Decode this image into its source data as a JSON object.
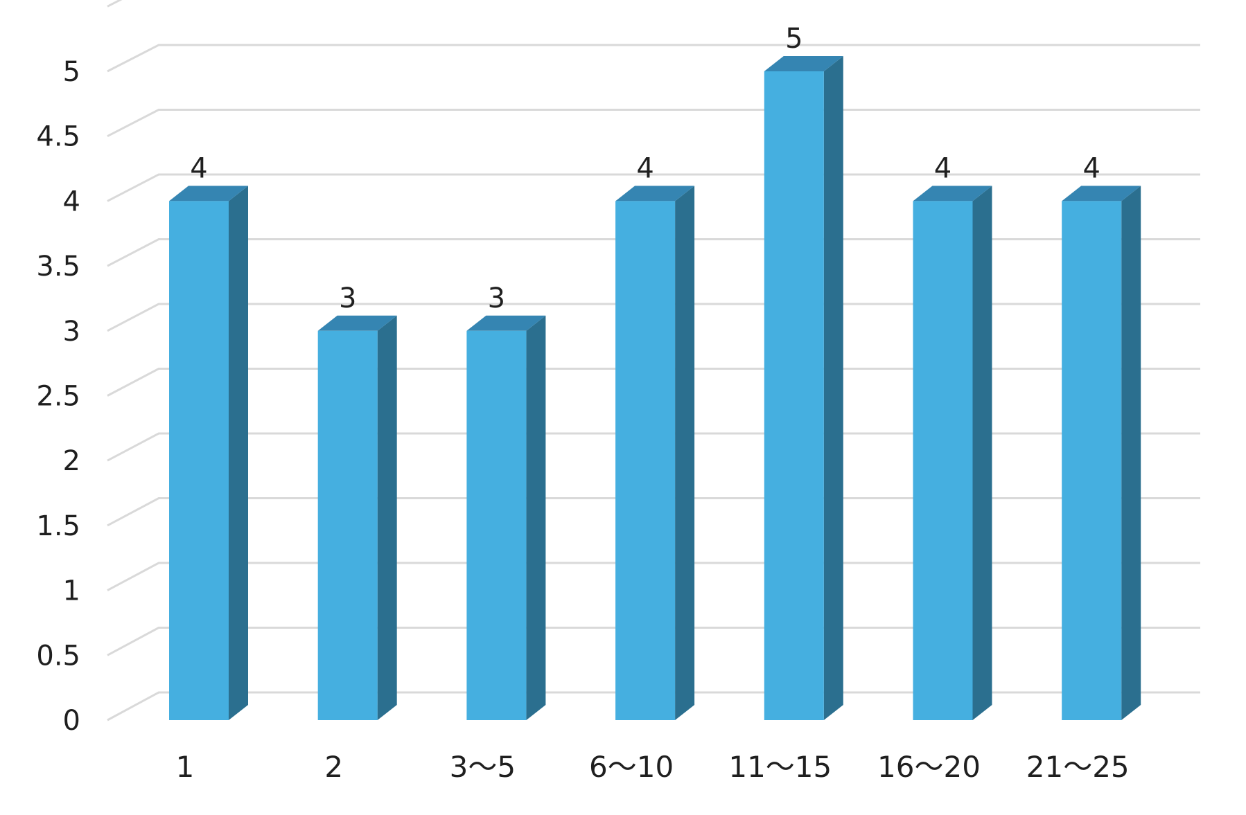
{
  "chart_data": {
    "type": "bar",
    "style": "3d-column",
    "categories": [
      "1",
      "2",
      "3〜5",
      "6〜10",
      "11〜15",
      "16〜20",
      "21〜25"
    ],
    "values": [
      4,
      3,
      3,
      4,
      5,
      4,
      4
    ],
    "data_labels": [
      "4",
      "3",
      "3",
      "4",
      "5",
      "4",
      "4"
    ],
    "y_ticks": [
      "0",
      "0.5",
      "1",
      "1.5",
      "2",
      "2.5",
      "3",
      "3.5",
      "4",
      "4.5",
      "5"
    ],
    "ylim": [
      0,
      5.3
    ],
    "grid": true,
    "legend": "none",
    "title": "",
    "xlabel": "",
    "ylabel": "",
    "colors": {
      "bar_front": "#45afe0",
      "bar_side": "#2b6f8f",
      "bar_top": "#3585b2",
      "grid": "#d9d9d9"
    }
  }
}
